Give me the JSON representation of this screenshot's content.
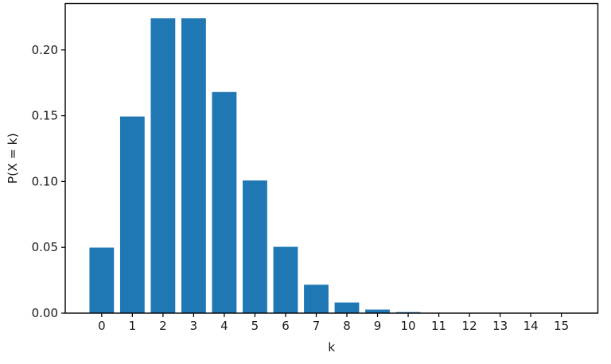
{
  "figure": {
    "background": "#ffffff"
  },
  "chart_data": {
    "type": "bar",
    "xlabel": "k",
    "ylabel": "P(X = k)",
    "categories": [
      "0",
      "1",
      "2",
      "3",
      "4",
      "5",
      "6",
      "7",
      "8",
      "9",
      "10",
      "11",
      "12",
      "13",
      "14",
      "15"
    ],
    "values": [
      0.0498,
      0.1494,
      0.224,
      0.224,
      0.168,
      0.1008,
      0.0504,
      0.0216,
      0.0081,
      0.0027,
      0.0008,
      0.0002,
      0.0001,
      0,
      0,
      0
    ],
    "yticks": [
      0,
      0.05,
      0.1,
      0.15,
      0.2
    ],
    "yticklabels": [
      "0.00",
      "0.05",
      "0.10",
      "0.15",
      "0.20"
    ],
    "xlim": [
      -1.19,
      16.19
    ],
    "ylim": [
      0,
      0.2352
    ],
    "bar_width": 0.8,
    "bar_color": "#1f77b4",
    "spine_color": "#000000",
    "tick_color": "#000000",
    "text_color": "#1a1a1a",
    "grid": false,
    "legend": "none"
  }
}
